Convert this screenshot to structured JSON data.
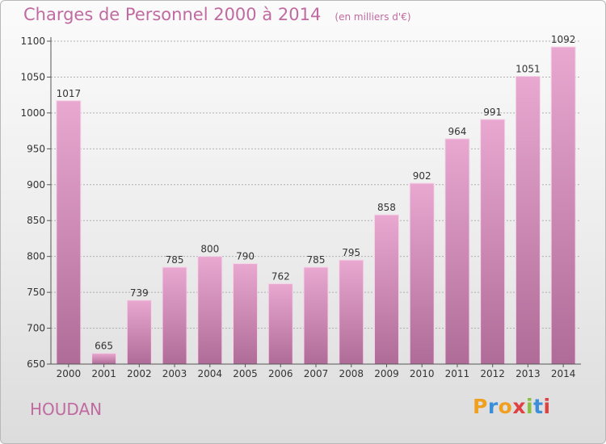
{
  "chart_title": "Charges de Personnel 2000 à 2014",
  "chart_subtitle": "(en milliers d'€)",
  "commune": "HOUDAN",
  "logo": {
    "text": "Proxiti",
    "colors": [
      "#f0a020",
      "#3a8fd8",
      "#f0a020",
      "#e04040",
      "#88c040",
      "#3a8fd8",
      "#e04040"
    ]
  },
  "colors": {
    "bar_top": "#e8a8d0",
    "bar_bottom": "#b06c98",
    "accent": "#c06aa0",
    "grid": "#b0b0b0"
  },
  "chart_data": {
    "type": "bar",
    "title": "Charges de Personnel 2000 à 2014",
    "subtitle": "(en milliers d'€)",
    "categories": [
      "2000",
      "2001",
      "2002",
      "2003",
      "2004",
      "2005",
      "2006",
      "2007",
      "2008",
      "2009",
      "2010",
      "2011",
      "2012",
      "2013",
      "2014"
    ],
    "values": [
      1017,
      665,
      739,
      785,
      800,
      790,
      762,
      785,
      795,
      858,
      902,
      964,
      991,
      1051,
      1092
    ],
    "ylim": [
      650,
      1100
    ],
    "yticks": [
      650,
      700,
      750,
      800,
      850,
      900,
      950,
      1000,
      1050,
      1100
    ],
    "grid": true,
    "xlabel": "",
    "ylabel": ""
  }
}
